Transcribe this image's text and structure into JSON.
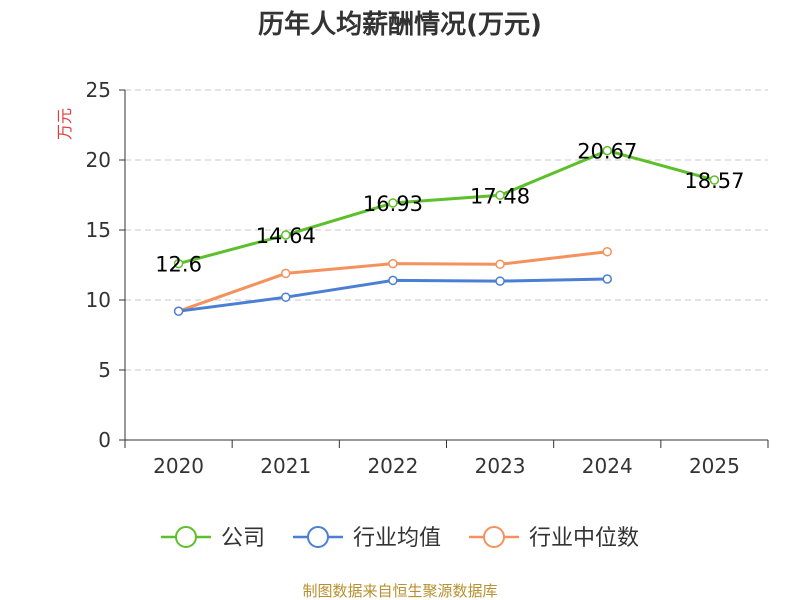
{
  "chart_data": {
    "type": "line",
    "title": "历年人均薪酬情况(万元)",
    "ylabel": "万元",
    "xlabel": "",
    "categories": [
      "2020",
      "2021",
      "2022",
      "2023",
      "2024",
      "2025"
    ],
    "ylim": [
      0,
      25
    ],
    "yticks": [
      0,
      5,
      10,
      15,
      20,
      25
    ],
    "grid": true,
    "legend_position": "bottom",
    "series": [
      {
        "name": "公司",
        "color": "#5cc02a",
        "values": [
          12.6,
          14.64,
          16.93,
          17.48,
          20.67,
          18.57
        ],
        "labels": [
          "12.6",
          "14.64",
          "16.93",
          "17.48",
          "20.67",
          "18.57"
        ]
      },
      {
        "name": "行业均值",
        "color": "#4a7fd4",
        "values": [
          9.2,
          10.2,
          11.4,
          11.35,
          11.5,
          null
        ]
      },
      {
        "name": "行业中位数",
        "color": "#f5915c",
        "values": [
          9.2,
          11.9,
          12.6,
          12.55,
          13.45,
          null
        ]
      }
    ]
  },
  "source": "制图数据来自恒生聚源数据库"
}
